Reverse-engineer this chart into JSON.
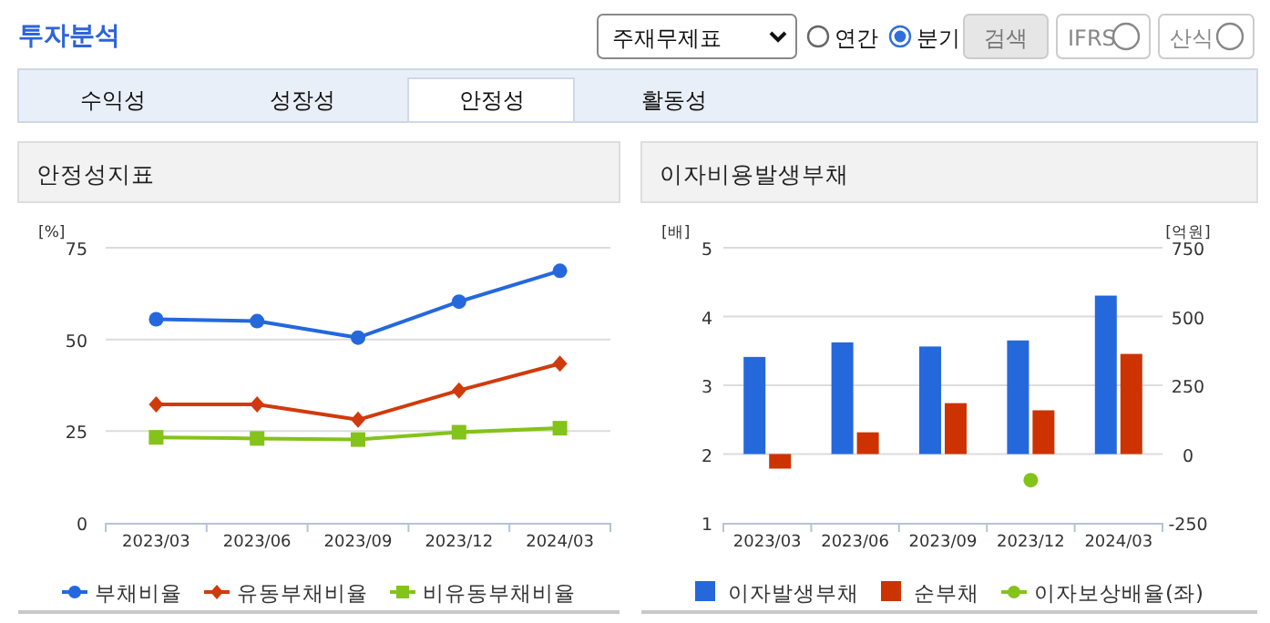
{
  "chart_data": [
    {
      "type": "other",
      "title": "투자분석",
      "annotations": [
        "주재무제표",
        "연간",
        "분기",
        "검색",
        "IFRS",
        "산식",
        "수익성",
        "성장성",
        "안정성",
        "활동성"
      ]
    },
    {
      "type": "line",
      "title": "안정성지표",
      "ylabel": "[%]",
      "categories": [
        "2023/03",
        "2023/06",
        "2023/09",
        "2023/12",
        "2024/03"
      ],
      "ylim": [
        0,
        75
      ],
      "yticks": [
        0,
        25,
        50,
        75
      ],
      "grid": "y",
      "legend": "bottom",
      "line_style": "solid",
      "series": [
        {
          "name": "부채비율",
          "color": "#2468dc",
          "marker": "circle",
          "values": [
            55.5,
            55.0,
            50.5,
            60.3,
            68.7
          ]
        },
        {
          "name": "유동부채비율",
          "color": "#d13a0c",
          "marker": "diamond",
          "values": [
            32.3,
            32.3,
            28.1,
            36.1,
            43.4
          ]
        },
        {
          "name": "비유동부채비율",
          "color": "#84c31a",
          "marker": "square",
          "values": [
            23.3,
            23.0,
            22.7,
            24.7,
            25.8
          ]
        }
      ]
    },
    {
      "type": "bar",
      "title": "이자비용발생부채",
      "ylabel": "[배]",
      "y2label": "[억원]",
      "categories": [
        "2023/03",
        "2023/06",
        "2023/09",
        "2023/12",
        "2024/03"
      ],
      "ylim": [
        1,
        5
      ],
      "yticks": [
        1,
        2,
        3,
        4,
        5
      ],
      "y2lim": [
        -250,
        750
      ],
      "y2ticks": [
        -250,
        0,
        250,
        500,
        750
      ],
      "grid": "y",
      "legend": "bottom",
      "series": [
        {
          "name": "이자발생부채",
          "color": "#2468dc",
          "axis": "y2",
          "values": [
            353,
            406,
            391,
            413,
            576
          ]
        },
        {
          "name": "순부채",
          "color": "#cc3300",
          "axis": "y2",
          "values": [
            -53,
            79,
            185,
            159,
            364
          ]
        },
        {
          "name": "이자보상배율(좌)",
          "type": "line",
          "marker": "circle",
          "color": "#84c31a",
          "axis": "y",
          "values": [
            null,
            null,
            null,
            1.62,
            null
          ]
        }
      ]
    }
  ]
}
